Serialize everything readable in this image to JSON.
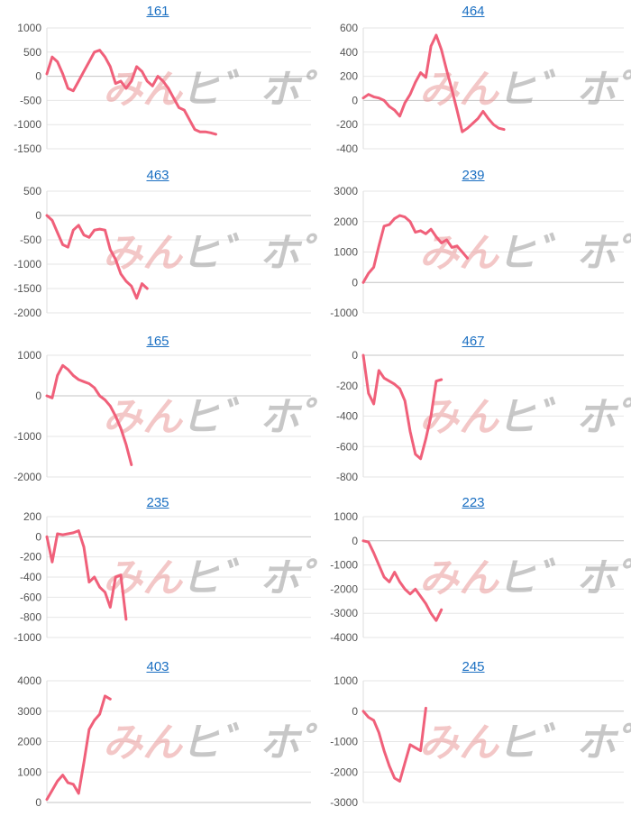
{
  "chart_data": [
    {
      "type": "line",
      "title": "161",
      "ylim": [
        -1500,
        1000
      ],
      "yticks": [
        1000,
        500,
        0,
        -500,
        -1000,
        -1500
      ],
      "x": [
        0,
        2,
        4,
        6,
        8,
        10,
        12,
        14,
        16,
        18,
        20,
        22,
        24,
        26,
        28,
        30,
        32,
        34,
        36,
        38,
        40,
        42,
        44,
        46,
        48,
        50,
        52,
        54,
        56,
        58,
        60,
        62,
        64
      ],
      "values": [
        50,
        400,
        300,
        50,
        -250,
        -300,
        -100,
        100,
        300,
        500,
        540,
        400,
        200,
        -150,
        -100,
        -250,
        -100,
        200,
        100,
        -100,
        -200,
        0,
        -100,
        -250,
        -450,
        -650,
        -700,
        -900,
        -1100,
        -1150,
        -1150,
        -1170,
        -1200
      ],
      "grid": true,
      "color": "#f0607a"
    },
    {
      "type": "line",
      "title": "464",
      "ylim": [
        -400,
        600
      ],
      "yticks": [
        600,
        400,
        200,
        0,
        -200,
        -400
      ],
      "x": [
        0,
        2,
        4,
        6,
        8,
        10,
        12,
        14,
        16,
        18,
        20,
        22,
        24,
        26,
        28,
        30,
        32,
        34,
        36,
        38,
        40,
        42,
        44,
        46,
        48,
        50,
        52,
        54,
        56,
        58,
        60,
        62,
        64
      ],
      "values": [
        20,
        50,
        30,
        20,
        0,
        -50,
        -80,
        -130,
        -20,
        50,
        150,
        230,
        190,
        450,
        540,
        420,
        250,
        90,
        -80,
        -260,
        -230,
        -190,
        -150,
        -90,
        -150,
        -200,
        -230,
        -240,
        null,
        null,
        null,
        null,
        null
      ],
      "grid": true,
      "color": "#f0607a"
    },
    {
      "type": "line",
      "title": "463",
      "ylim": [
        -2000,
        500
      ],
      "yticks": [
        500,
        0,
        -500,
        -1000,
        -1500,
        -2000
      ],
      "x": [
        0,
        2,
        4,
        6,
        8,
        10,
        12,
        14,
        16,
        18,
        20,
        22,
        24,
        26,
        28,
        30,
        32,
        34,
        36,
        38,
        40,
        42,
        44,
        46,
        48,
        50,
        52,
        54,
        56,
        58,
        60,
        62,
        64
      ],
      "values": [
        0,
        -100,
        -350,
        -600,
        -650,
        -300,
        -200,
        -400,
        -450,
        -300,
        -280,
        -300,
        -700,
        -900,
        -1200,
        -1350,
        -1450,
        -1700,
        -1400,
        -1500,
        null,
        null,
        null,
        null,
        null,
        null,
        null,
        null,
        null,
        null,
        null,
        null,
        null
      ],
      "grid": true,
      "color": "#f0607a"
    },
    {
      "type": "line",
      "title": "239",
      "ylim": [
        -1000,
        3000
      ],
      "yticks": [
        3000,
        2000,
        1000,
        0,
        -1000
      ],
      "x": [
        0,
        2,
        4,
        6,
        8,
        10,
        12,
        14,
        16,
        18,
        20,
        22,
        24,
        26,
        28,
        30,
        32,
        34,
        36,
        38,
        40,
        42,
        44,
        46,
        48,
        50,
        52,
        54,
        56,
        58,
        60,
        62,
        64
      ],
      "values": [
        0,
        300,
        500,
        1200,
        1850,
        1900,
        2100,
        2200,
        2150,
        2000,
        1650,
        1700,
        1600,
        1750,
        1500,
        1300,
        1400,
        1150,
        1200,
        1000,
        800,
        null,
        null,
        null,
        null,
        null,
        null,
        null,
        null,
        null,
        null,
        null,
        null
      ],
      "grid": true,
      "color": "#f0607a"
    },
    {
      "type": "line",
      "title": "165",
      "ylim": [
        -2000,
        1000
      ],
      "yticks": [
        1000,
        0,
        -1000,
        -2000
      ],
      "x": [
        0,
        2,
        4,
        6,
        8,
        10,
        12,
        14,
        16,
        18,
        20,
        22,
        24,
        26,
        28,
        30,
        32,
        34,
        36,
        38,
        40,
        42,
        44,
        46,
        48,
        50,
        52,
        54,
        56,
        58,
        60,
        62,
        64
      ],
      "values": [
        0,
        -50,
        500,
        750,
        650,
        500,
        400,
        350,
        300,
        200,
        0,
        -100,
        -250,
        -500,
        -800,
        -1200,
        -1700,
        null,
        null,
        null,
        null,
        null,
        null,
        null,
        null,
        null,
        null,
        null,
        null,
        null,
        null,
        null,
        null
      ],
      "grid": true,
      "color": "#f0607a"
    },
    {
      "type": "line",
      "title": "467",
      "ylim": [
        -800,
        0
      ],
      "yticks": [
        0,
        -200,
        -400,
        -600,
        -800
      ],
      "x": [
        0,
        2,
        4,
        6,
        8,
        10,
        12,
        14,
        16,
        18,
        20,
        22,
        24,
        26,
        28,
        30,
        32,
        34,
        36,
        38,
        40,
        42,
        44,
        46,
        48,
        50,
        52,
        54,
        56,
        58,
        60,
        62,
        64
      ],
      "values": [
        0,
        -250,
        -320,
        -100,
        -150,
        -170,
        -190,
        -220,
        -300,
        -500,
        -650,
        -680,
        -550,
        -400,
        -170,
        -160,
        null,
        null,
        null,
        null,
        null,
        null,
        null,
        null,
        null,
        null,
        null,
        null,
        null,
        null,
        null,
        null,
        null
      ],
      "grid": true,
      "color": "#f0607a"
    },
    {
      "type": "line",
      "title": "235",
      "ylim": [
        -1000,
        200
      ],
      "yticks": [
        200,
        0,
        -200,
        -400,
        -600,
        -800,
        -1000
      ],
      "x": [
        0,
        2,
        4,
        6,
        8,
        10,
        12,
        14,
        16,
        18,
        20,
        22,
        24,
        26,
        28,
        30,
        32,
        34,
        36,
        38,
        40,
        42,
        44,
        46,
        48,
        50,
        52,
        54,
        56,
        58,
        60,
        62,
        64
      ],
      "values": [
        0,
        -250,
        30,
        20,
        30,
        40,
        60,
        -100,
        -450,
        -400,
        -500,
        -550,
        -700,
        -400,
        -380,
        -820,
        null,
        null,
        null,
        null,
        null,
        null,
        null,
        null,
        null,
        null,
        null,
        null,
        null,
        null,
        null,
        null,
        null
      ],
      "grid": true,
      "color": "#f0607a"
    },
    {
      "type": "line",
      "title": "223",
      "ylim": [
        -4000,
        1000
      ],
      "yticks": [
        1000,
        0,
        -1000,
        -2000,
        -3000,
        -4000
      ],
      "x": [
        0,
        2,
        4,
        6,
        8,
        10,
        12,
        14,
        16,
        18,
        20,
        22,
        24,
        26,
        28,
        30,
        32,
        34,
        36,
        38,
        40,
        42,
        44,
        46,
        48,
        50,
        52,
        54,
        56,
        58,
        60,
        62,
        64
      ],
      "values": [
        0,
        -50,
        -500,
        -1000,
        -1500,
        -1700,
        -1300,
        -1700,
        -2000,
        -2200,
        -2000,
        -2300,
        -2600,
        -3000,
        -3300,
        -2850,
        null,
        null,
        null,
        null,
        null,
        null,
        null,
        null,
        null,
        null,
        null,
        null,
        null,
        null,
        null,
        null,
        null
      ],
      "grid": true,
      "color": "#f0607a"
    },
    {
      "type": "line",
      "title": "403",
      "ylim": [
        0,
        4000
      ],
      "yticks": [
        4000,
        3000,
        2000,
        1000,
        0
      ],
      "x": [
        0,
        2,
        4,
        6,
        8,
        10,
        12,
        14,
        16,
        18,
        20,
        22,
        24,
        26,
        28,
        30,
        32,
        34,
        36,
        38,
        40,
        42,
        44,
        46,
        48,
        50,
        52,
        54,
        56,
        58,
        60,
        62,
        64
      ],
      "values": [
        100,
        400,
        700,
        900,
        650,
        600,
        300,
        1300,
        2400,
        2700,
        2900,
        3500,
        3400,
        null,
        null,
        null,
        null,
        null,
        null,
        null,
        null,
        null,
        null,
        null,
        null,
        null,
        null,
        null,
        null,
        null,
        null,
        null,
        null
      ],
      "grid": true,
      "color": "#f0607a"
    },
    {
      "type": "line",
      "title": "245",
      "ylim": [
        -3000,
        1000
      ],
      "yticks": [
        1000,
        0,
        -1000,
        -2000,
        -3000
      ],
      "x": [
        0,
        2,
        4,
        6,
        8,
        10,
        12,
        14,
        16,
        18,
        20,
        22,
        24,
        26,
        28,
        30,
        32,
        34,
        36,
        38,
        40,
        42,
        44,
        46,
        48,
        50,
        52,
        54,
        56,
        58,
        60,
        62,
        64
      ],
      "values": [
        0,
        -200,
        -300,
        -700,
        -1300,
        -1800,
        -2200,
        -2300,
        -1700,
        -1100,
        -1200,
        -1300,
        100,
        null,
        null,
        null,
        null,
        null,
        null,
        null,
        null,
        null,
        null,
        null,
        null,
        null,
        null,
        null,
        null,
        null,
        null,
        null,
        null
      ],
      "grid": true,
      "color": "#f0607a"
    }
  ]
}
